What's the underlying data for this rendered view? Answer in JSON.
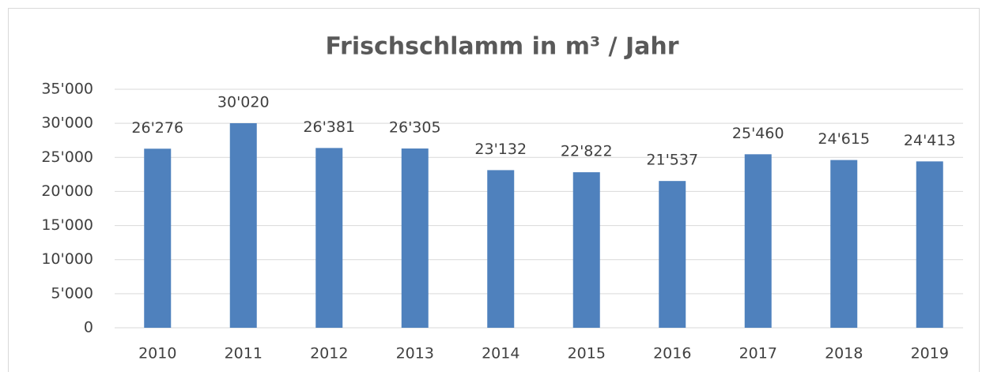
{
  "chart_data": {
    "type": "bar",
    "title": "Frischschlamm in m³ / Jahr",
    "categories": [
      "2010",
      "2011",
      "2012",
      "2013",
      "2014",
      "2015",
      "2016",
      "2017",
      "2018",
      "2019"
    ],
    "values": [
      26276,
      30020,
      26381,
      26305,
      23132,
      22822,
      21537,
      25460,
      24615,
      24413
    ],
    "value_labels": [
      "26'276",
      "30'020",
      "26'381",
      "26'305",
      "23'132",
      "22'822",
      "21'537",
      "25'460",
      "24'615",
      "24'413"
    ],
    "color": "#4f81bd",
    "ylim": [
      0,
      35000
    ],
    "yticks": [
      0,
      {
        "value": 5000,
        "label": "5'000"
      },
      {
        "value": 10000,
        "label": "10'000"
      },
      {
        "value": 15000,
        "label": "15'000"
      },
      {
        "value": 20000,
        "label": "20'000"
      },
      {
        "value": 25000,
        "label": "25'000"
      },
      {
        "value": 30000,
        "label": "30'000"
      },
      {
        "value": 35000,
        "label": "35'000"
      }
    ],
    "grid": true
  }
}
